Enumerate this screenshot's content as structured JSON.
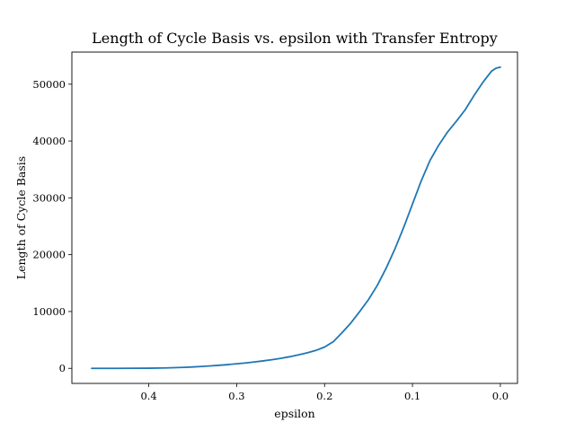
{
  "chart_data": {
    "type": "line",
    "title": "Length of Cycle Basis vs. epsilon with Transfer Entropy",
    "xlabel": "epsilon",
    "ylabel": "Length of Cycle Basis",
    "xlim": [
      0.4875,
      -0.0195
    ],
    "ylim": [
      -2650,
      55650
    ],
    "x_inverted": true,
    "grid": false,
    "color": "#1f77b4",
    "xticks": [
      0.4,
      0.3,
      0.2,
      0.1,
      0.0
    ],
    "xtick_labels": [
      "0.4",
      "0.3",
      "0.2",
      "0.1",
      "0.0"
    ],
    "yticks": [
      0,
      10000,
      20000,
      30000,
      40000,
      50000
    ],
    "ytick_labels": [
      "0",
      "10000",
      "20000",
      "30000",
      "40000",
      "50000"
    ],
    "x": [
      0.465,
      0.44,
      0.42,
      0.4,
      0.38,
      0.36,
      0.35,
      0.34,
      0.33,
      0.32,
      0.31,
      0.3,
      0.29,
      0.28,
      0.27,
      0.26,
      0.25,
      0.24,
      0.23,
      0.22,
      0.21,
      0.2,
      0.19,
      0.18,
      0.17,
      0.16,
      0.15,
      0.14,
      0.13,
      0.12,
      0.11,
      0.1,
      0.09,
      0.08,
      0.07,
      0.06,
      0.05,
      0.04,
      0.03,
      0.02,
      0.01,
      0.005,
      0.0
    ],
    "y": [
      0,
      0,
      10,
      30,
      80,
      170,
      240,
      330,
      430,
      540,
      660,
      800,
      950,
      1120,
      1310,
      1520,
      1760,
      2040,
      2360,
      2730,
      3150,
      3750,
      4700,
      6300,
      8000,
      10000,
      12100,
      14600,
      17600,
      21000,
      24800,
      28900,
      33000,
      36600,
      39300,
      41600,
      43500,
      45500,
      48000,
      50300,
      52300,
      52800,
      53000
    ]
  }
}
